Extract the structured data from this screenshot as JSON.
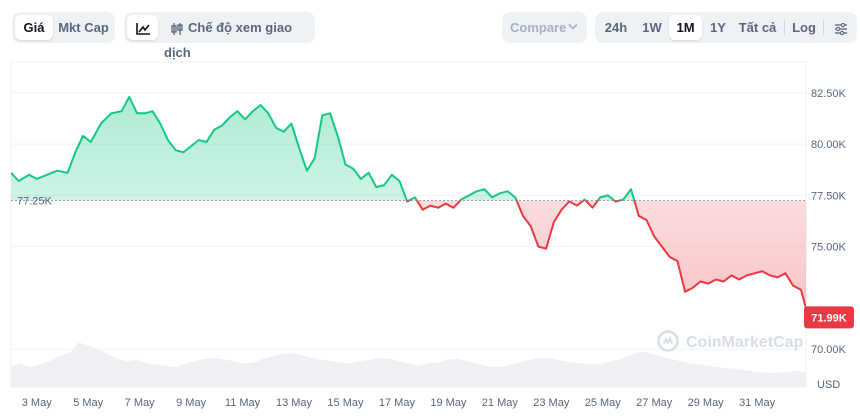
{
  "toolbar": {
    "price_tab": "Giá",
    "mktcap_tab": "Mkt Cap",
    "trading_mode_label": "Chế độ xem giao dịch",
    "compare_label": "Compare",
    "ranges": [
      "24h",
      "1W",
      "1M",
      "1Y",
      "Tất cả"
    ],
    "active_range": "1M",
    "log_label": "Log",
    "icons": {
      "line_chart": "line-chart-icon",
      "trading_view": "candle-icon",
      "compare_chevron": "chevron-down-icon",
      "settings": "settings-icon"
    }
  },
  "watermark": "CoinMarketCap",
  "colors": {
    "up": "#16c784",
    "down": "#ea3943",
    "accent_active": "#0d1421",
    "volume": "#eef0f4"
  },
  "chart_data": {
    "type": "area",
    "baseline": {
      "value": 77.25,
      "label": "77.25K"
    },
    "current": {
      "value": 71.99,
      "label": "71.99K"
    },
    "y_ticks": [
      "82.50K",
      "80.00K",
      "77.50K",
      "75.00K",
      "70.00K"
    ],
    "y_tick_values": [
      82.5,
      80.0,
      77.5,
      75.0,
      70.0
    ],
    "ylim": [
      68.5,
      84.0
    ],
    "y_unit_label": "USD",
    "x_ticks": [
      "3 May",
      "5 May",
      "7 May",
      "9 May",
      "11 May",
      "13 May",
      "15 May",
      "17 May",
      "19 May",
      "21 May",
      "23 May",
      "25 May",
      "27 May",
      "29 May",
      "31 May"
    ],
    "x_tick_days": [
      3,
      5,
      7,
      9,
      11,
      13,
      15,
      17,
      19,
      21,
      23,
      25,
      27,
      29,
      31
    ],
    "xlim": [
      2.0,
      32.9
    ],
    "series": [
      {
        "x": [
          2.0,
          2.3,
          2.7,
          3.0,
          3.4,
          3.8,
          4.2,
          4.5,
          4.8,
          5.1,
          5.5,
          5.9,
          6.3,
          6.6,
          6.9,
          7.2,
          7.5,
          7.8,
          8.1,
          8.4,
          8.7,
          9.0,
          9.3,
          9.6,
          9.9,
          10.2,
          10.5,
          10.8,
          11.1,
          11.4,
          11.7,
          12.0,
          12.3,
          12.6,
          12.9,
          13.2,
          13.5,
          13.8,
          14.1,
          14.4,
          14.7,
          15.0,
          15.3,
          15.6,
          15.9,
          16.2,
          16.5,
          16.8,
          17.1,
          17.4,
          17.7,
          18.0,
          18.3,
          18.6,
          18.9,
          19.2,
          19.5,
          19.8,
          20.1,
          20.4,
          20.7,
          21.0,
          21.3,
          21.6,
          21.9,
          22.2,
          22.5,
          22.8,
          23.1,
          23.4,
          23.7,
          24.0,
          24.3,
          24.6,
          24.9,
          25.2,
          25.5,
          25.8,
          26.1,
          26.4,
          26.7,
          27.0,
          27.3,
          27.6,
          27.9,
          28.2,
          28.5,
          28.8,
          29.1,
          29.4,
          29.7,
          30.0,
          30.3,
          30.6,
          30.9,
          31.2,
          31.5,
          31.8,
          32.1,
          32.4,
          32.7,
          32.9
        ],
        "values": [
          78.6,
          78.2,
          78.5,
          78.3,
          78.5,
          78.7,
          78.6,
          79.6,
          80.4,
          80.1,
          81.0,
          81.5,
          81.6,
          82.3,
          81.5,
          81.5,
          81.6,
          81.0,
          80.2,
          79.7,
          79.6,
          79.9,
          80.2,
          80.1,
          80.7,
          80.9,
          81.3,
          81.6,
          81.2,
          81.6,
          81.9,
          81.5,
          80.8,
          80.6,
          81.0,
          79.8,
          78.7,
          79.3,
          81.4,
          81.5,
          80.4,
          79.0,
          78.8,
          78.3,
          78.6,
          77.9,
          78.0,
          78.5,
          78.2,
          77.2,
          77.4,
          76.8,
          77.0,
          76.9,
          77.1,
          76.9,
          77.3,
          77.5,
          77.7,
          77.8,
          77.4,
          77.6,
          77.7,
          77.4,
          76.5,
          76.0,
          75.0,
          74.9,
          76.2,
          76.8,
          77.2,
          77.0,
          77.3,
          76.9,
          77.4,
          77.5,
          77.2,
          77.3,
          77.8,
          76.5,
          76.3,
          75.5,
          75.0,
          74.5,
          74.3,
          72.8,
          73.0,
          73.3,
          73.2,
          73.4,
          73.3,
          73.6,
          73.4,
          73.6,
          73.7,
          73.8,
          73.6,
          73.5,
          73.7,
          73.1,
          72.9,
          71.99
        ]
      }
    ],
    "volume_relative": [
      0.45,
      0.5,
      0.42,
      0.48,
      0.55,
      0.65,
      0.72,
      0.95,
      0.88,
      0.8,
      0.7,
      0.6,
      0.55,
      0.58,
      0.5,
      0.48,
      0.45,
      0.42,
      0.5,
      0.55,
      0.6,
      0.62,
      0.58,
      0.55,
      0.5,
      0.52,
      0.6,
      0.65,
      0.7,
      0.72,
      0.68,
      0.62,
      0.58,
      0.55,
      0.52,
      0.5,
      0.55,
      0.58,
      0.62,
      0.6,
      0.55,
      0.5,
      0.45,
      0.5,
      0.52,
      0.58,
      0.6,
      0.55,
      0.5,
      0.45,
      0.42,
      0.45,
      0.5,
      0.55,
      0.6,
      0.62,
      0.6,
      0.55,
      0.52,
      0.5,
      0.48,
      0.5,
      0.55,
      0.6,
      0.68,
      0.75,
      0.72,
      0.65,
      0.6,
      0.55,
      0.5,
      0.48,
      0.45,
      0.42,
      0.4,
      0.38,
      0.35,
      0.32,
      0.3,
      0.3,
      0.32,
      0.35,
      0.3
    ]
  }
}
